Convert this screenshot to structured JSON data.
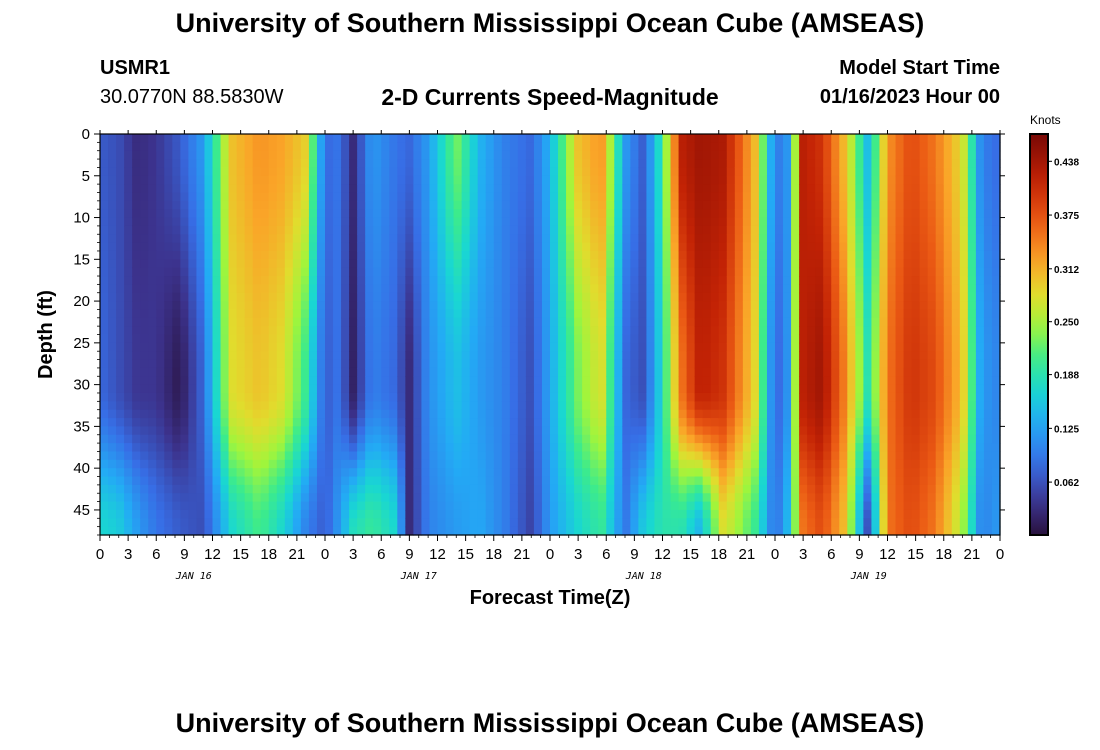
{
  "header": {
    "title_top": "University of Southern Mississippi Ocean Cube (AMSEAS)",
    "station_id": "USMR1",
    "station_coords": "30.0770N  88.5830W",
    "plot_title": "2-D Currents Speed-Magnitude",
    "start_label": "Model Start Time",
    "start_value": "01/16/2023 Hour 00"
  },
  "footer": {
    "title_bottom": "University of Southern Mississippi Ocean Cube (AMSEAS)"
  },
  "chart_data": {
    "type": "heatmap",
    "title": "2-D Currents Speed-Magnitude",
    "xlabel": "Forecast Time(Z)",
    "ylabel": "Depth (ft)",
    "x_range_hours": [
      0,
      96
    ],
    "y_range_ft": [
      0,
      48
    ],
    "x_tick_labels": [
      "0",
      "3",
      "6",
      "9",
      "12",
      "15",
      "18",
      "21",
      "0",
      "3",
      "6",
      "9",
      "12",
      "15",
      "18",
      "21",
      "0",
      "3",
      "6",
      "9",
      "12",
      "15",
      "18",
      "21",
      "0",
      "3",
      "6",
      "9",
      "12",
      "15",
      "18",
      "21",
      "0"
    ],
    "day_labels": [
      "JAN 16",
      "JAN 17",
      "JAN 18",
      "JAN 19"
    ],
    "y_tick_values": [
      0,
      5,
      10,
      15,
      20,
      25,
      30,
      35,
      40,
      45
    ],
    "y_tick_labels": [
      "0",
      "5",
      "10",
      "15",
      "20",
      "25",
      "30",
      "35",
      "40",
      "45"
    ],
    "colorbar": {
      "title": "Knots",
      "range": [
        0,
        0.47
      ],
      "tick_values": [
        0.062,
        0.125,
        0.188,
        0.25,
        0.312,
        0.375,
        0.438
      ],
      "tick_labels": [
        "0.062",
        "0.125",
        "0.188",
        "0.250",
        "0.312",
        "0.375",
        "0.438"
      ]
    },
    "time_anchor_hours": [
      0,
      2,
      4,
      6,
      8.5,
      11,
      14,
      17,
      19.5,
      22,
      24,
      25.5,
      27,
      29,
      31.5,
      33,
      35,
      38,
      40.5,
      43,
      46,
      48,
      51,
      53.5,
      56,
      58,
      60,
      62,
      64,
      66.5,
      70,
      72,
      73.5,
      75,
      77,
      79.5,
      82,
      84,
      86.5,
      89,
      92,
      94,
      96
    ],
    "speed_top_knots": [
      0.07,
      0.06,
      0.03,
      0.04,
      0.07,
      0.12,
      0.3,
      0.33,
      0.32,
      0.29,
      0.08,
      0.09,
      0.03,
      0.12,
      0.09,
      0.08,
      0.12,
      0.23,
      0.14,
      0.1,
      0.08,
      0.14,
      0.3,
      0.33,
      0.12,
      0.07,
      0.2,
      0.42,
      0.44,
      0.43,
      0.3,
      0.09,
      0.12,
      0.42,
      0.4,
      0.3,
      0.14,
      0.33,
      0.38,
      0.35,
      0.28,
      0.1,
      0.08
    ],
    "speed_bottom_knots": [
      0.17,
      0.16,
      0.12,
      0.09,
      0.07,
      0.06,
      0.17,
      0.21,
      0.17,
      0.1,
      0.07,
      0.12,
      0.18,
      0.2,
      0.17,
      0.03,
      0.1,
      0.12,
      0.13,
      0.1,
      0.05,
      0.12,
      0.17,
      0.2,
      0.09,
      0.16,
      0.19,
      0.19,
      0.14,
      0.28,
      0.2,
      0.08,
      0.15,
      0.35,
      0.38,
      0.3,
      0.05,
      0.35,
      0.38,
      0.35,
      0.25,
      0.1,
      0.12
    ],
    "speed_mid_knots": [
      0.08,
      0.06,
      0.04,
      0.04,
      0.01,
      0.08,
      0.28,
      0.3,
      0.28,
      0.2,
      0.07,
      0.09,
      0.02,
      0.1,
      0.08,
      0.03,
      0.11,
      0.15,
      0.12,
      0.1,
      0.06,
      0.13,
      0.23,
      0.28,
      0.08,
      0.06,
      0.18,
      0.35,
      0.42,
      0.4,
      0.28,
      0.07,
      0.12,
      0.42,
      0.44,
      0.34,
      0.18,
      0.35,
      0.4,
      0.38,
      0.3,
      0.12,
      0.1
    ],
    "profile_mid_depth_ft": 30
  }
}
